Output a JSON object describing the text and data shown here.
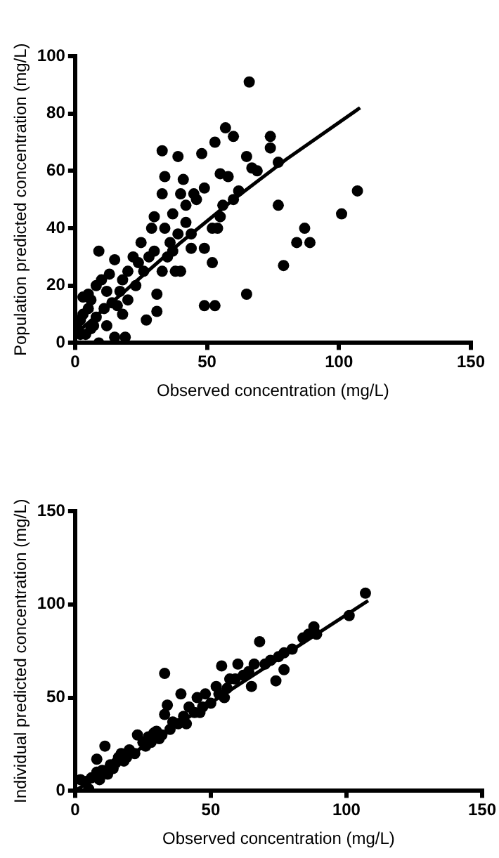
{
  "chart_data": [
    {
      "type": "scatter",
      "xlabel": "Observed concentration (mg/L)",
      "ylabel": "Population predicted concentration (mg/L)",
      "xlim": [
        0,
        150
      ],
      "xticks": [
        0,
        50,
        100,
        150
      ],
      "ylim": [
        0,
        100
      ],
      "yticks": [
        0,
        20,
        40,
        60,
        80,
        100
      ],
      "grid": false,
      "legend": false,
      "marker": "circle",
      "series": [
        {
          "type": "scatter",
          "color": "#000000",
          "x": [
            66,
            57,
            60,
            74,
            74,
            65,
            33,
            39,
            48,
            53,
            67,
            69,
            77,
            58,
            55,
            41,
            34,
            33,
            40,
            49,
            107,
            77,
            101,
            87,
            84,
            89,
            79,
            65,
            49,
            53,
            52,
            49,
            44,
            38,
            40,
            33,
            31,
            31,
            27,
            15,
            19,
            9,
            15,
            30,
            29,
            34,
            37,
            42,
            45,
            46,
            55,
            52,
            54,
            56,
            60,
            62,
            30,
            25,
            22,
            20,
            18,
            13,
            10,
            12,
            8,
            6,
            5,
            3,
            2,
            1,
            4,
            7,
            9,
            12,
            16,
            18,
            20,
            23,
            26,
            28,
            36,
            39,
            42,
            44,
            35,
            37,
            24,
            17,
            14,
            11,
            8,
            3,
            5,
            2,
            6
          ],
          "values": [
            91,
            75,
            72,
            72,
            68,
            65,
            67,
            65,
            66,
            70,
            61,
            60,
            63,
            58,
            59,
            57,
            58,
            52,
            52,
            54,
            53,
            48,
            45,
            40,
            35,
            35,
            27,
            17,
            13,
            13,
            28,
            33,
            33,
            25,
            25,
            25,
            17,
            11,
            8,
            2,
            2,
            32,
            29,
            44,
            40,
            40,
            45,
            48,
            52,
            50,
            44,
            40,
            40,
            48,
            50,
            53,
            32,
            35,
            30,
            25,
            22,
            24,
            22,
            18,
            20,
            15,
            12,
            10,
            8,
            5,
            3,
            6,
            0,
            6,
            13,
            10,
            15,
            20,
            25,
            30,
            35,
            38,
            42,
            38,
            30,
            32,
            28,
            18,
            14,
            12,
            9,
            16,
            17,
            3,
            5
          ]
        },
        {
          "type": "line",
          "color": "#000000",
          "marker": "none",
          "x": [
            0,
            20,
            40,
            60,
            80,
            108
          ],
          "values": [
            3,
            19,
            35,
            50,
            64,
            82
          ]
        }
      ]
    },
    {
      "type": "scatter",
      "xlabel": "Observed concentration (mg/L)",
      "ylabel": "Individual predicted concentration (mg/L)",
      "xlim": [
        0,
        150
      ],
      "xticks": [
        0,
        50,
        100,
        150
      ],
      "ylim": [
        0,
        150
      ],
      "yticks": [
        0,
        50,
        100,
        150
      ],
      "grid": false,
      "legend": false,
      "marker": "circle",
      "series": [
        {
          "type": "scatter",
          "color": "#000000",
          "x": [
            107,
            101,
            88,
            89,
            84,
            77,
            75,
            77,
            74,
            68,
            66,
            65,
            60,
            54,
            57,
            52,
            55,
            33,
            39,
            34,
            33,
            23,
            11,
            8,
            30,
            45,
            48,
            42,
            40,
            36,
            27,
            25,
            20,
            17,
            15,
            13,
            10,
            8,
            6,
            4,
            5,
            9,
            12,
            14,
            18,
            22,
            26,
            28,
            32,
            35,
            38,
            41,
            44,
            47,
            50,
            53,
            56,
            59,
            62,
            64,
            70,
            72,
            80,
            86,
            46,
            31,
            29,
            19,
            16,
            2
          ],
          "values": [
            106,
            94,
            88,
            84,
            82,
            74,
            72,
            65,
            59,
            80,
            68,
            56,
            68,
            67,
            60,
            56,
            50,
            63,
            52,
            46,
            41,
            30,
            24,
            17,
            32,
            50,
            52,
            45,
            40,
            37,
            29,
            26,
            22,
            20,
            15,
            14,
            11,
            10,
            7,
            5,
            1,
            6,
            9,
            12,
            16,
            20,
            24,
            26,
            30,
            33,
            36,
            36,
            42,
            45,
            47,
            52,
            55,
            60,
            62,
            64,
            68,
            70,
            76,
            84,
            42,
            28,
            31,
            18,
            18,
            6
          ]
        },
        {
          "type": "line",
          "color": "#000000",
          "marker": "none",
          "x": [
            0,
            108
          ],
          "values": [
            0,
            102
          ]
        }
      ]
    }
  ]
}
